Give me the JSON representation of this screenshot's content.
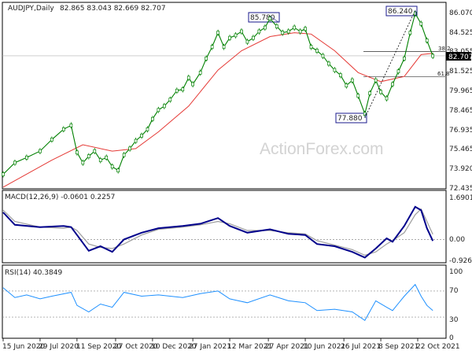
{
  "chart_data": {
    "type": "line",
    "colors": {
      "background": "#ffffff",
      "price_line": "#008000",
      "candle_fill": "#ffffff",
      "moving_average": "#e53935",
      "macd_line": "#00008b",
      "macd_signal": "#9e9e9e",
      "rsi_line": "#1e90ff",
      "annotation_box": "#1a1a8c",
      "axis": "#000000",
      "level_line": "#000000"
    },
    "main": {
      "title": "AUDJPY,Daily",
      "ohlc_text": "82.865 83.043 82.669 82.707",
      "y_ticks": [
        "86.070",
        "84.525",
        "83.055",
        "81.525",
        "79.965",
        "78.465",
        "76.935",
        "75.465",
        "73.920",
        "72.435"
      ],
      "ylim": [
        72.435,
        86.8
      ],
      "current_price": "82.707",
      "current_price_value": 82.707,
      "annotations": [
        {
          "label": "85.780",
          "x": "29 Apr 2021",
          "value": 85.78
        },
        {
          "label": "86.240",
          "x": "19 Oct 2021",
          "value": 86.24
        },
        {
          "label": "77.880",
          "x": "20 Aug 2021",
          "value": 77.88
        }
      ],
      "fib_labels": [
        {
          "label": "38.2",
          "value": 83.05
        },
        {
          "label": "61.8",
          "value": 81.1
        }
      ],
      "watermark": "ActionForex.com",
      "series": [
        {
          "x": "15 Jun 2020",
          "close": 73.5
        },
        {
          "x": "29 Jun 2020",
          "close": 74.4
        },
        {
          "x": "13 Jul 2020",
          "close": 74.8
        },
        {
          "x": "29 Jul 2020",
          "close": 75.3
        },
        {
          "x": "12 Aug 2020",
          "close": 76.2
        },
        {
          "x": "26 Aug 2020",
          "close": 77.0
        },
        {
          "x": "4 Sep 2020",
          "close": 77.3
        },
        {
          "x": "11 Sep 2020",
          "close": 75.2
        },
        {
          "x": "18 Sep 2020",
          "close": 74.4
        },
        {
          "x": "25 Sep 2020",
          "close": 74.9
        },
        {
          "x": "2 Oct 2020",
          "close": 75.3
        },
        {
          "x": "9 Oct 2020",
          "close": 74.6
        },
        {
          "x": "16 Oct 2020",
          "close": 74.8
        },
        {
          "x": "23 Oct 2020",
          "close": 74.1
        },
        {
          "x": "30 Oct 2020",
          "close": 73.8
        },
        {
          "x": "6 Nov 2020",
          "close": 75.0
        },
        {
          "x": "13 Nov 2020",
          "close": 75.5
        },
        {
          "x": "20 Nov 2020",
          "close": 76.1
        },
        {
          "x": "27 Nov 2020",
          "close": 76.5
        },
        {
          "x": "4 Dec 2020",
          "close": 77.0
        },
        {
          "x": "10 Dec 2020",
          "close": 77.8
        },
        {
          "x": "17 Dec 2020",
          "close": 78.5
        },
        {
          "x": "24 Dec 2020",
          "close": 78.8
        },
        {
          "x": "31 Dec 2020",
          "close": 79.3
        },
        {
          "x": "8 Jan 2021",
          "close": 80.0
        },
        {
          "x": "15 Jan 2021",
          "close": 80.1
        },
        {
          "x": "22 Jan 2021",
          "close": 81.0
        },
        {
          "x": "27 Jan 2021",
          "close": 80.5
        },
        {
          "x": "5 Feb 2021",
          "close": 81.4
        },
        {
          "x": "12 Feb 2021",
          "close": 82.5
        },
        {
          "x": "19 Feb 2021",
          "close": 83.4
        },
        {
          "x": "26 Feb 2021",
          "close": 84.5
        },
        {
          "x": "5 Mar 2021",
          "close": 83.4
        },
        {
          "x": "12 Mar 2021",
          "close": 84.1
        },
        {
          "x": "19 Mar 2021",
          "close": 84.3
        },
        {
          "x": "26 Mar 2021",
          "close": 84.6
        },
        {
          "x": "2 Apr 2021",
          "close": 83.8
        },
        {
          "x": "9 Apr 2021",
          "close": 84.1
        },
        {
          "x": "16 Apr 2021",
          "close": 84.6
        },
        {
          "x": "23 Apr 2021",
          "close": 84.9
        },
        {
          "x": "29 Apr 2021",
          "close": 85.6
        },
        {
          "x": "7 May 2021",
          "close": 85.0
        },
        {
          "x": "14 May 2021",
          "close": 84.5
        },
        {
          "x": "21 May 2021",
          "close": 84.6
        },
        {
          "x": "28 May 2021",
          "close": 84.9
        },
        {
          "x": "4 Jun 2021",
          "close": 84.6
        },
        {
          "x": "10 Jun 2021",
          "close": 84.8
        },
        {
          "x": "17 Jun 2021",
          "close": 83.4
        },
        {
          "x": "24 Jun 2021",
          "close": 83.1
        },
        {
          "x": "1 Jul 2021",
          "close": 82.7
        },
        {
          "x": "8 Jul 2021",
          "close": 82.1
        },
        {
          "x": "15 Jul 2021",
          "close": 81.6
        },
        {
          "x": "22 Jul 2021",
          "close": 81.2
        },
        {
          "x": "29 Jul 2021",
          "close": 80.4
        },
        {
          "x": "5 Aug 2021",
          "close": 80.8
        },
        {
          "x": "12 Aug 2021",
          "close": 79.6
        },
        {
          "x": "20 Aug 2021",
          "close": 78.2
        },
        {
          "x": "26 Aug 2021",
          "close": 79.8
        },
        {
          "x": "2 Sep 2021",
          "close": 80.8
        },
        {
          "x": "8 Sep 2021",
          "close": 79.9
        },
        {
          "x": "15 Sep 2021",
          "close": 79.4
        },
        {
          "x": "22 Sep 2021",
          "close": 80.5
        },
        {
          "x": "29 Sep 2021",
          "close": 81.5
        },
        {
          "x": "6 Oct 2021",
          "close": 82.5
        },
        {
          "x": "13 Oct 2021",
          "close": 84.5
        },
        {
          "x": "19 Oct 2021",
          "close": 86.0
        },
        {
          "x": "26 Oct 2021",
          "close": 85.2
        },
        {
          "x": "2 Nov 2021",
          "close": 83.9
        },
        {
          "x": "9 Nov 2021",
          "close": 82.7
        }
      ],
      "moving_average": [
        {
          "x": "15 Jun 2020",
          "value": 72.5
        },
        {
          "x": "12 Aug 2020",
          "value": 74.6
        },
        {
          "x": "18 Sep 2020",
          "value": 75.8
        },
        {
          "x": "23 Oct 2020",
          "value": 75.3
        },
        {
          "x": "20 Nov 2020",
          "value": 75.5
        },
        {
          "x": "17 Dec 2020",
          "value": 76.8
        },
        {
          "x": "22 Jan 2021",
          "value": 78.8
        },
        {
          "x": "26 Feb 2021",
          "value": 81.6
        },
        {
          "x": "26 Mar 2021",
          "value": 83.1
        },
        {
          "x": "29 Apr 2021",
          "value": 84.2
        },
        {
          "x": "28 May 2021",
          "value": 84.5
        },
        {
          "x": "17 Jun 2021",
          "value": 84.4
        },
        {
          "x": "15 Jul 2021",
          "value": 83.1
        },
        {
          "x": "12 Aug 2021",
          "value": 81.4
        },
        {
          "x": "8 Sep 2021",
          "value": 80.7
        },
        {
          "x": "6 Oct 2021",
          "value": 81.1
        },
        {
          "x": "26 Oct 2021",
          "value": 82.8
        },
        {
          "x": "9 Nov 2021",
          "value": 82.9
        }
      ]
    },
    "macd": {
      "title": "MACD(12,26,9) -0.0601 0.2257",
      "y_ticks": [
        "1.6901",
        "0.00",
        "-0.9263"
      ],
      "ylim": [
        -0.9263,
        1.6901
      ],
      "series": [
        {
          "x": "15 Jun 2020",
          "macd": 1.2,
          "signal": 1.3
        },
        {
          "x": "29 Jun 2020",
          "macd": 0.65,
          "signal": 0.8
        },
        {
          "x": "29 Jul 2020",
          "macd": 0.55,
          "signal": 0.55
        },
        {
          "x": "26 Aug 2020",
          "macd": 0.6,
          "signal": 0.5
        },
        {
          "x": "4 Sep 2020",
          "macd": 0.55,
          "signal": 0.55
        },
        {
          "x": "11 Sep 2020",
          "macd": 0.2,
          "signal": 0.4
        },
        {
          "x": "25 Sep 2020",
          "macd": -0.5,
          "signal": -0.2
        },
        {
          "x": "9 Oct 2020",
          "macd": -0.3,
          "signal": -0.35
        },
        {
          "x": "23 Oct 2020",
          "macd": -0.55,
          "signal": -0.4
        },
        {
          "x": "6 Nov 2020",
          "macd": 0.0,
          "signal": -0.2
        },
        {
          "x": "27 Nov 2020",
          "macd": 0.3,
          "signal": 0.2
        },
        {
          "x": "17 Dec 2020",
          "macd": 0.5,
          "signal": 0.45
        },
        {
          "x": "15 Jan 2021",
          "macd": 0.6,
          "signal": 0.55
        },
        {
          "x": "5 Feb 2021",
          "macd": 0.7,
          "signal": 0.65
        },
        {
          "x": "26 Feb 2021",
          "macd": 0.95,
          "signal": 0.8
        },
        {
          "x": "12 Mar 2021",
          "macd": 0.6,
          "signal": 0.7
        },
        {
          "x": "2 Apr 2021",
          "macd": 0.3,
          "signal": 0.4
        },
        {
          "x": "29 Apr 2021",
          "macd": 0.45,
          "signal": 0.4
        },
        {
          "x": "21 May 2021",
          "macd": 0.25,
          "signal": 0.3
        },
        {
          "x": "10 Jun 2021",
          "macd": 0.2,
          "signal": 0.25
        },
        {
          "x": "24 Jun 2021",
          "macd": -0.2,
          "signal": -0.05
        },
        {
          "x": "15 Jul 2021",
          "macd": -0.3,
          "signal": -0.25
        },
        {
          "x": "5 Aug 2021",
          "macd": -0.55,
          "signal": -0.45
        },
        {
          "x": "20 Aug 2021",
          "macd": -0.8,
          "signal": -0.7
        },
        {
          "x": "2 Sep 2021",
          "macd": -0.4,
          "signal": -0.55
        },
        {
          "x": "15 Sep 2021",
          "macd": 0.05,
          "signal": -0.2
        },
        {
          "x": "22 Sep 2021",
          "macd": -0.1,
          "signal": -0.05
        },
        {
          "x": "6 Oct 2021",
          "macd": 0.6,
          "signal": 0.3
        },
        {
          "x": "19 Oct 2021",
          "macd": 1.45,
          "signal": 1.1
        },
        {
          "x": "26 Oct 2021",
          "macd": 1.3,
          "signal": 1.35
        },
        {
          "x": "2 Nov 2021",
          "macd": 0.5,
          "signal": 0.8
        },
        {
          "x": "9 Nov 2021",
          "macd": -0.06,
          "signal": 0.23
        }
      ]
    },
    "rsi": {
      "title": "RSI(14) 40.3849",
      "y_ticks": [
        "100",
        "70",
        "30",
        "0"
      ],
      "ylim": [
        0,
        100
      ],
      "levels": [
        70,
        30
      ],
      "series": [
        {
          "x": "15 Jun 2020",
          "value": 75
        },
        {
          "x": "29 Jun 2020",
          "value": 60
        },
        {
          "x": "13 Jul 2020",
          "value": 64
        },
        {
          "x": "29 Jul 2020",
          "value": 58
        },
        {
          "x": "12 Aug 2020",
          "value": 62
        },
        {
          "x": "4 Sep 2020",
          "value": 68
        },
        {
          "x": "11 Sep 2020",
          "value": 48
        },
        {
          "x": "25 Sep 2020",
          "value": 38
        },
        {
          "x": "9 Oct 2020",
          "value": 50
        },
        {
          "x": "23 Oct 2020",
          "value": 45
        },
        {
          "x": "6 Nov 2020",
          "value": 68
        },
        {
          "x": "27 Nov 2020",
          "value": 62
        },
        {
          "x": "17 Dec 2020",
          "value": 64
        },
        {
          "x": "15 Jan 2021",
          "value": 60
        },
        {
          "x": "5 Feb 2021",
          "value": 66
        },
        {
          "x": "26 Feb 2021",
          "value": 70
        },
        {
          "x": "12 Mar 2021",
          "value": 58
        },
        {
          "x": "2 Apr 2021",
          "value": 52
        },
        {
          "x": "29 Apr 2021",
          "value": 64
        },
        {
          "x": "21 May 2021",
          "value": 55
        },
        {
          "x": "10 Jun 2021",
          "value": 52
        },
        {
          "x": "24 Jun 2021",
          "value": 40
        },
        {
          "x": "15 Jul 2021",
          "value": 42
        },
        {
          "x": "5 Aug 2021",
          "value": 38
        },
        {
          "x": "20 Aug 2021",
          "value": 25
        },
        {
          "x": "2 Sep 2021",
          "value": 55
        },
        {
          "x": "15 Sep 2021",
          "value": 45
        },
        {
          "x": "22 Sep 2021",
          "value": 40
        },
        {
          "x": "6 Oct 2021",
          "value": 62
        },
        {
          "x": "19 Oct 2021",
          "value": 80
        },
        {
          "x": "26 Oct 2021",
          "value": 62
        },
        {
          "x": "2 Nov 2021",
          "value": 48
        },
        {
          "x": "9 Nov 2021",
          "value": 40
        }
      ]
    },
    "x_ticks": [
      {
        "label": "15 Jun 2020",
        "date": "15 Jun 2020"
      },
      {
        "label": "29 Jul 2020",
        "date": "29 Jul 2020"
      },
      {
        "label": "11 Sep 2020",
        "date": "11 Sep 2020"
      },
      {
        "label": "27 Oct 2020",
        "date": "27 Oct 2020"
      },
      {
        "label": "10 Dec 2020",
        "date": "10 Dec 2020"
      },
      {
        "label": "27 Jan 2021",
        "date": "27 Jan 2021"
      },
      {
        "label": "12 Mar 2021",
        "date": "12 Mar 2021"
      },
      {
        "label": "27 Apr 2021",
        "date": "27 Apr 2021"
      },
      {
        "label": "10 Jun 2021",
        "date": "10 Jun 2021"
      },
      {
        "label": "26 Jul 2021",
        "date": "26 Jul 2021"
      },
      {
        "label": "8 Sep 2021",
        "date": "8 Sep 2021"
      },
      {
        "label": "22 Oct 2021",
        "date": "22 Oct 2021"
      }
    ]
  }
}
